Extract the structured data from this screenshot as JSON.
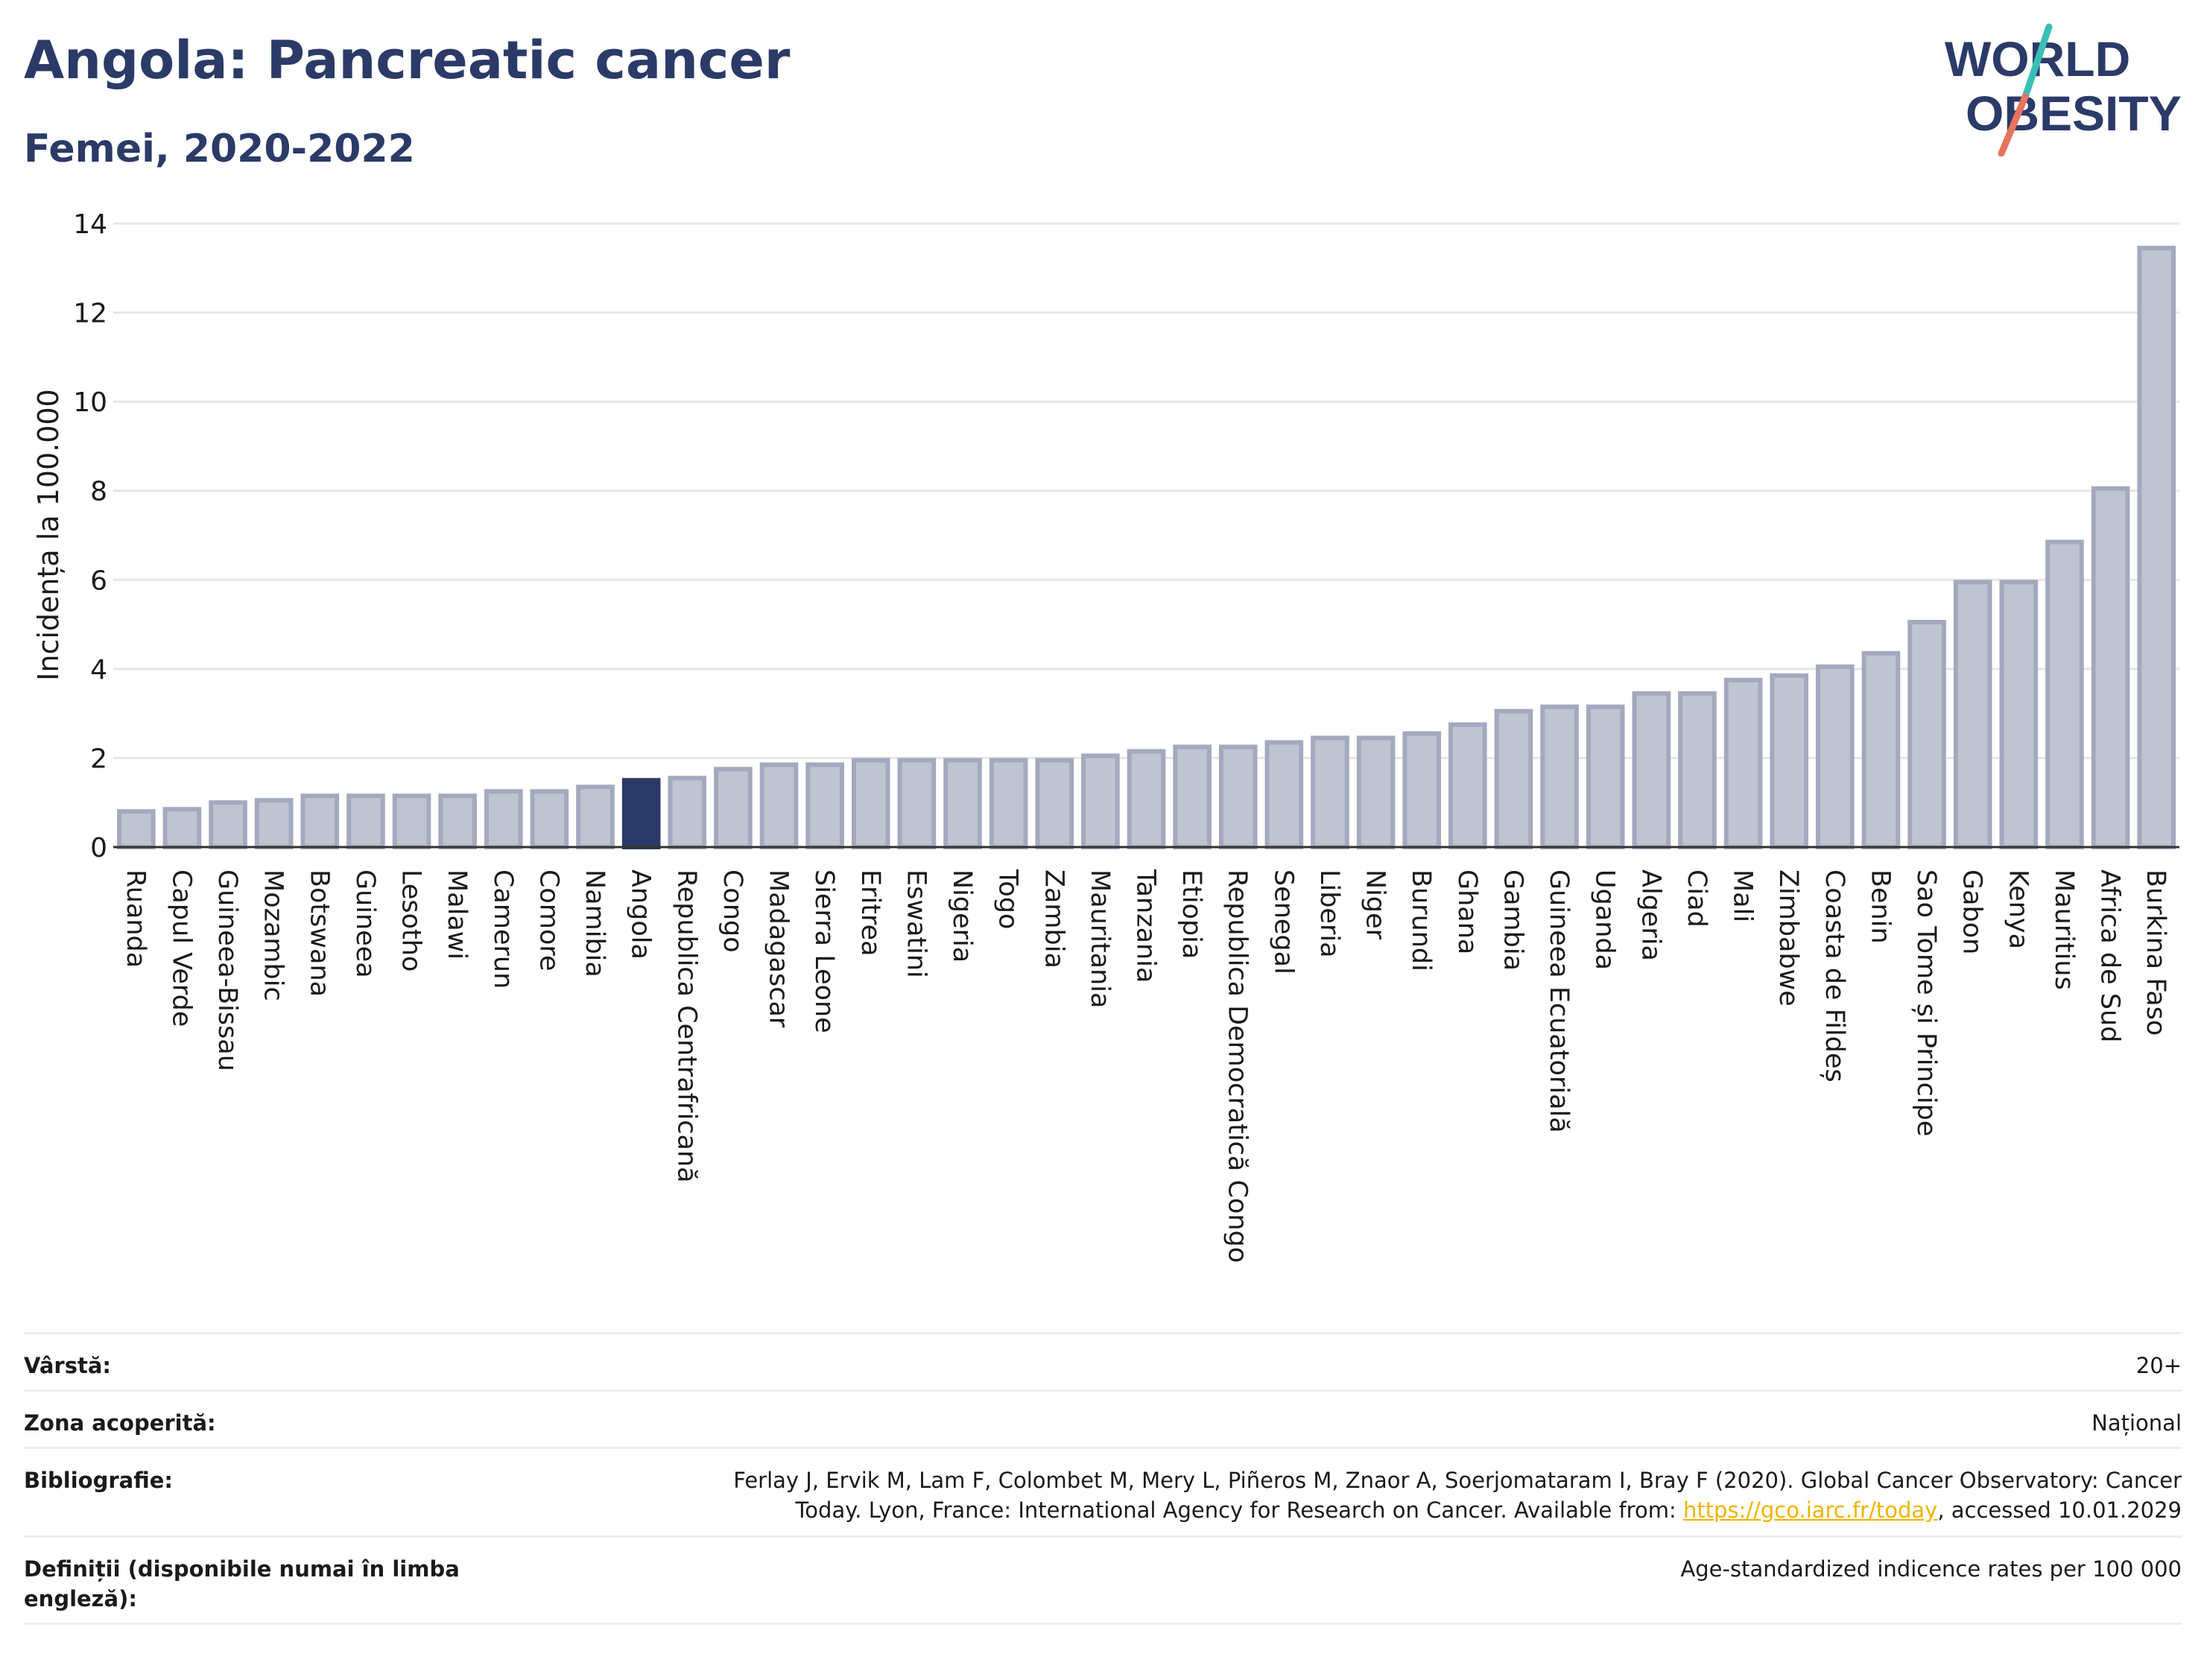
{
  "header": {
    "title": "Angola: Pancreatic cancer",
    "subtitle": "Femei, 2020-2022"
  },
  "logo": {
    "line1": "WORLD",
    "line2": "OBESITY",
    "icon": "world-obesity-logo"
  },
  "chart_data": {
    "type": "bar",
    "ylabel": "Incidența la 100.000",
    "ylim": [
      0,
      14
    ],
    "yticks": [
      0,
      2,
      4,
      6,
      8,
      10,
      12,
      14
    ],
    "grid": true,
    "highlight": "Angola",
    "colors": {
      "bar": "#c0c4d1",
      "bar_border": "#a3a9be",
      "highlight": "#2b3a67",
      "grid": "#e6e6e6"
    },
    "categories": [
      "Ruanda",
      "Capul Verde",
      "Guineea-Bissau",
      "Mozambic",
      "Botswana",
      "Guineea",
      "Lesotho",
      "Malawi",
      "Camerun",
      "Comore",
      "Namibia",
      "Angola",
      "Republica Centrafricană",
      "Congo",
      "Madagascar",
      "Sierra Leone",
      "Eritrea",
      "Eswatini",
      "Nigeria",
      "Togo",
      "Zambia",
      "Mauritania",
      "Tanzania",
      "Etiopia",
      "Republica Democratică Congo",
      "Senegal",
      "Liberia",
      "Niger",
      "Burundi",
      "Ghana",
      "Gambia",
      "Guineea Ecuatorială",
      "Uganda",
      "Algeria",
      "Ciad",
      "Mali",
      "Zimbabwe",
      "Coasta de Fildeș",
      "Benin",
      "Sao Tome și Principe",
      "Gabon",
      "Kenya",
      "Mauritius",
      "Africa de Sud",
      "Burkina Faso"
    ],
    "values": [
      0.8,
      0.85,
      1.0,
      1.05,
      1.15,
      1.15,
      1.15,
      1.15,
      1.25,
      1.25,
      1.35,
      1.5,
      1.55,
      1.75,
      1.85,
      1.85,
      1.95,
      1.95,
      1.95,
      1.95,
      1.95,
      2.05,
      2.15,
      2.25,
      2.25,
      2.35,
      2.45,
      2.45,
      2.55,
      2.75,
      3.05,
      3.15,
      3.15,
      3.45,
      3.45,
      3.75,
      3.85,
      4.05,
      4.35,
      5.05,
      5.95,
      5.95,
      6.85,
      8.05,
      13.45
    ]
  },
  "info": {
    "age_label": "Vârstă:",
    "age_value": "20+",
    "area_label": "Zona acoperită:",
    "area_value": "Național",
    "bib_label": "Bibliografie:",
    "bib_line1": "Ferlay J, Ervik M, Lam F, Colombet M, Mery L, Piñeros M, Znaor A, Soerjomataram I, Bray F (2020). Global Cancer Observatory: Cancer",
    "bib_line2_pre": "Today. Lyon, France: International Agency for Research on Cancer. Available from: ",
    "bib_link": "https://gco.iarc.fr/today",
    "bib_line2_post": ", accessed 10.01.2029",
    "def_label": "Definiții (disponibile numai în limba engleză):",
    "def_value": "Age-standardized indicence rates per 100 000"
  }
}
